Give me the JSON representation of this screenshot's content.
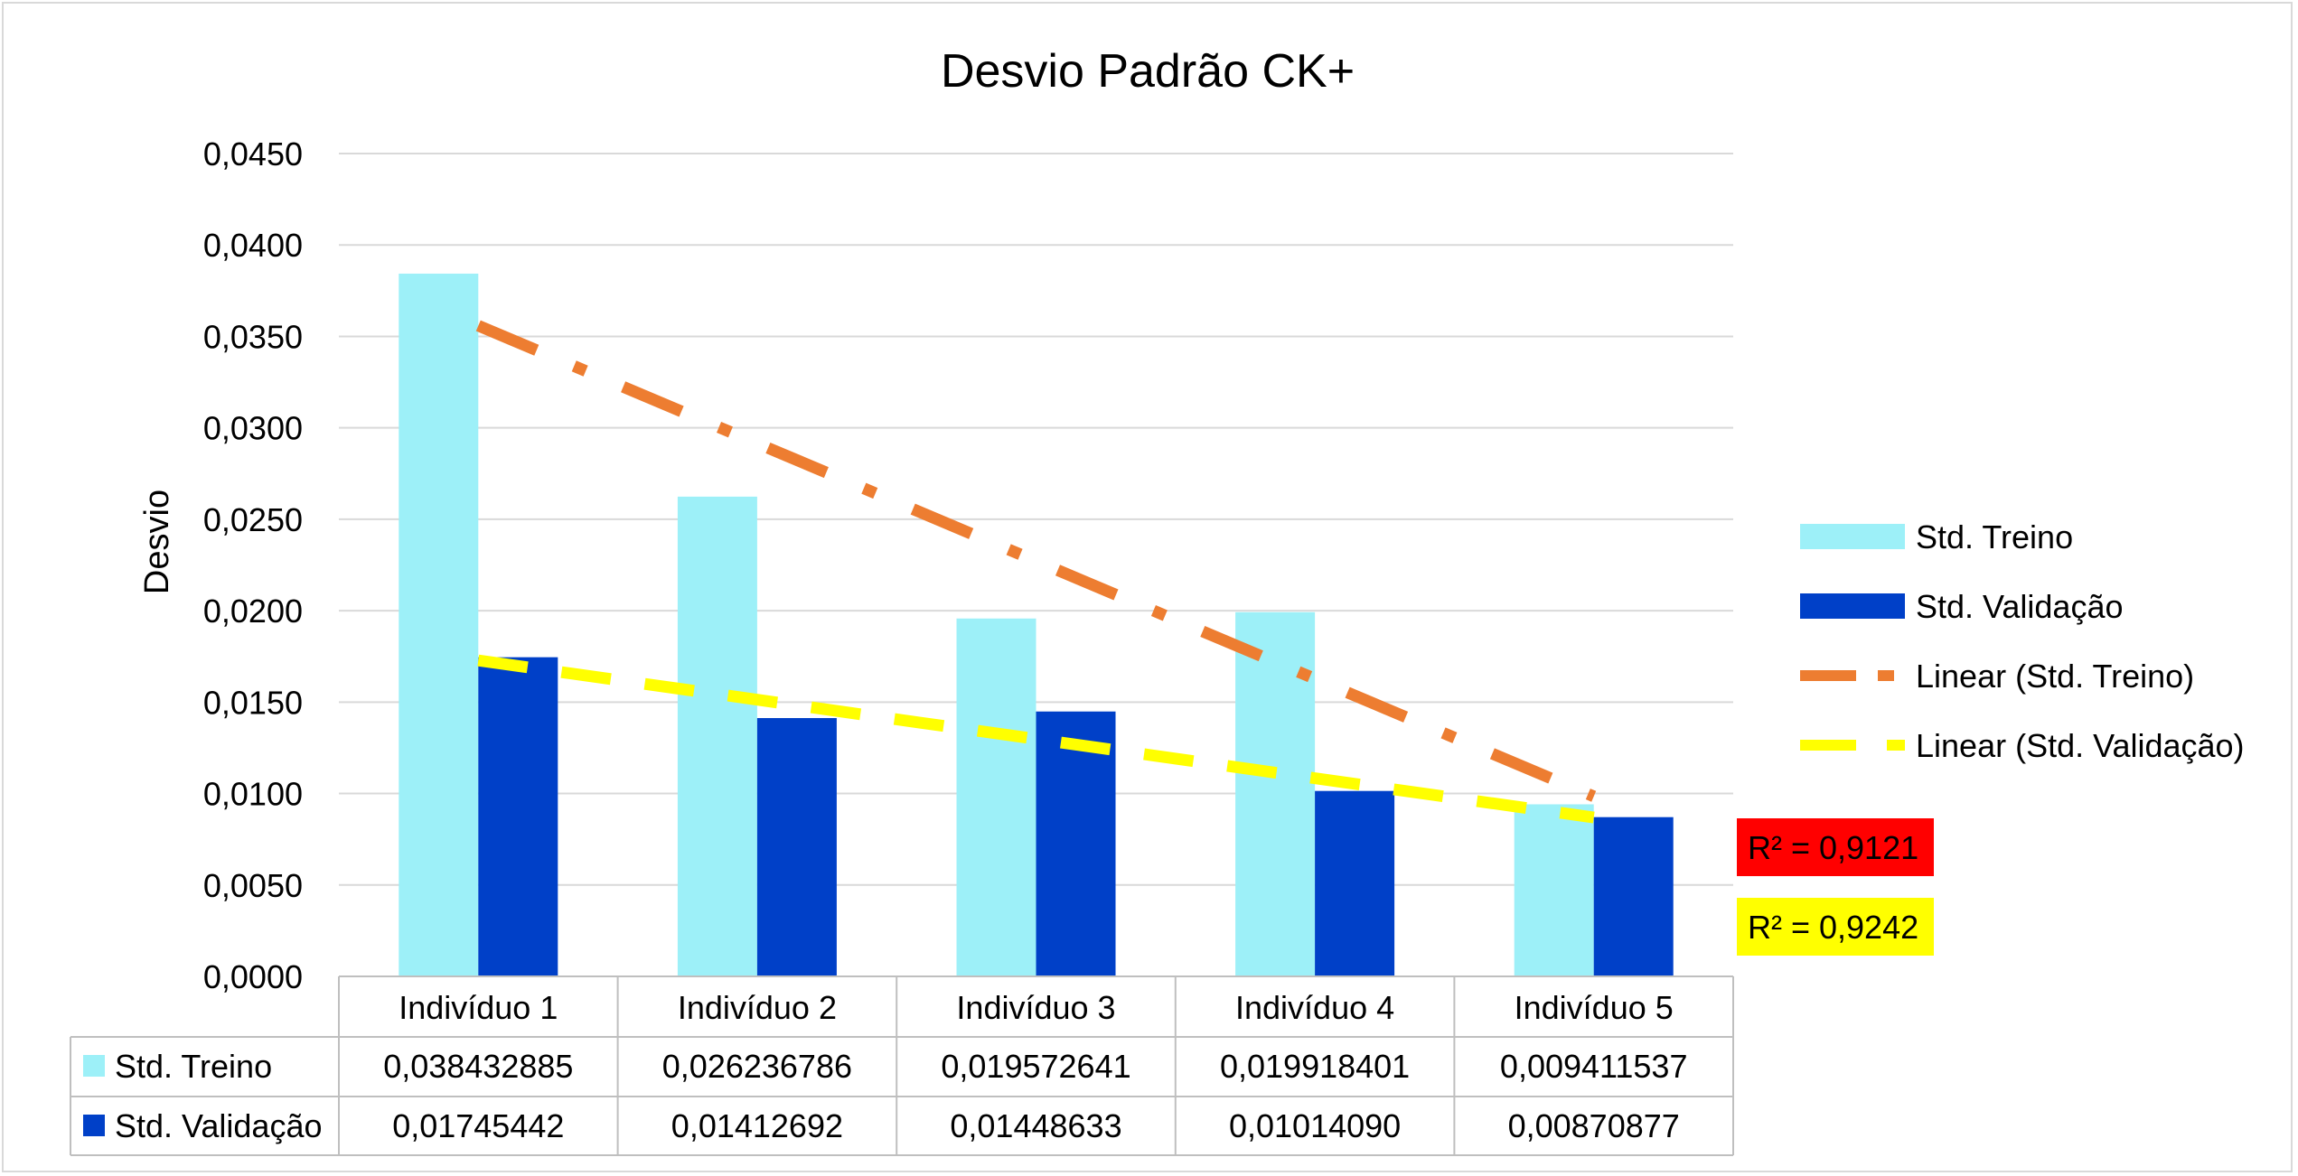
{
  "chart_data": {
    "type": "bar",
    "title": "Desvio Padrão CK+",
    "xlabel": "",
    "ylabel": "Desvio",
    "ylim": [
      0,
      0.045
    ],
    "ytick_step": 0.005,
    "ytick_labels": [
      "0,0000",
      "0,0050",
      "0,0100",
      "0,0150",
      "0,0200",
      "0,0250",
      "0,0300",
      "0,0350",
      "0,0400",
      "0,0450"
    ],
    "grid": true,
    "legend_position": "right",
    "categories": [
      "Indivíduo 1",
      "Indivíduo 2",
      "Indivíduo 3",
      "Indivíduo 4",
      "Indivíduo 5"
    ],
    "series": [
      {
        "name": "Std. Treino",
        "color": "#9DF0F8",
        "values": [
          0.038432885,
          0.026236786,
          0.019572641,
          0.019918401,
          0.009411537
        ],
        "value_labels": [
          "0,038432885",
          "0,026236786",
          "0,019572641",
          "0,019918401",
          "0,009411537"
        ]
      },
      {
        "name": "Std. Validação",
        "color": "#0040C8",
        "values": [
          0.01745442,
          0.01412692,
          0.01448633,
          0.0101409,
          0.00870877
        ],
        "value_labels": [
          "0,01745442",
          "0,01412692",
          "0,01448633",
          "0,01014090",
          "0,00870877"
        ]
      }
    ],
    "trendlines": [
      {
        "name": "Linear (Std. Treino)",
        "color": "#ED7D31",
        "style": "dash-dot",
        "r2_label": "R² = 0,9121",
        "r2_bg": "#FF0000"
      },
      {
        "name": "Linear (Std. Validação)",
        "color": "#FFFF00",
        "style": "dash",
        "r2_label": "R² = 0,9242",
        "r2_bg": "#FFFF00"
      }
    ],
    "data_table": true
  }
}
